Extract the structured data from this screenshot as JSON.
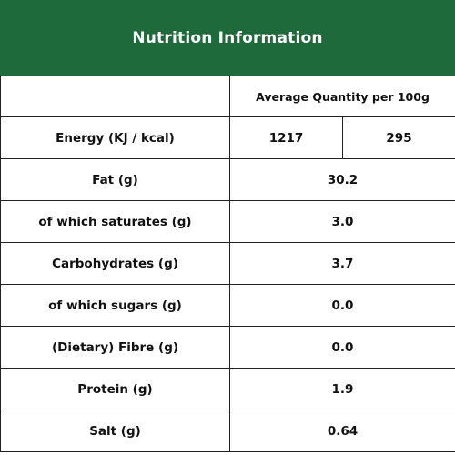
{
  "header": {
    "title": "Nutrition Information"
  },
  "table": {
    "column_header": "Average Quantity per 100g",
    "energy": {
      "label": "Energy (KJ / kcal)",
      "kj": "1217",
      "kcal": "295"
    },
    "rows": [
      {
        "label": "Fat (g)",
        "value": "30.2"
      },
      {
        "label": "of which saturates (g)",
        "value": "3.0"
      },
      {
        "label": "Carbohydrates (g)",
        "value": "3.7"
      },
      {
        "label": "of which sugars (g)",
        "value": "0.0"
      },
      {
        "label": "(Dietary) Fibre (g)",
        "value": "0.0"
      },
      {
        "label": "Protein (g)",
        "value": "1.9"
      },
      {
        "label": "Salt (g)",
        "value": "0.64"
      }
    ]
  },
  "colors": {
    "header_background": "#1f6a3a",
    "header_text": "#ffffff",
    "border": "#222222"
  }
}
